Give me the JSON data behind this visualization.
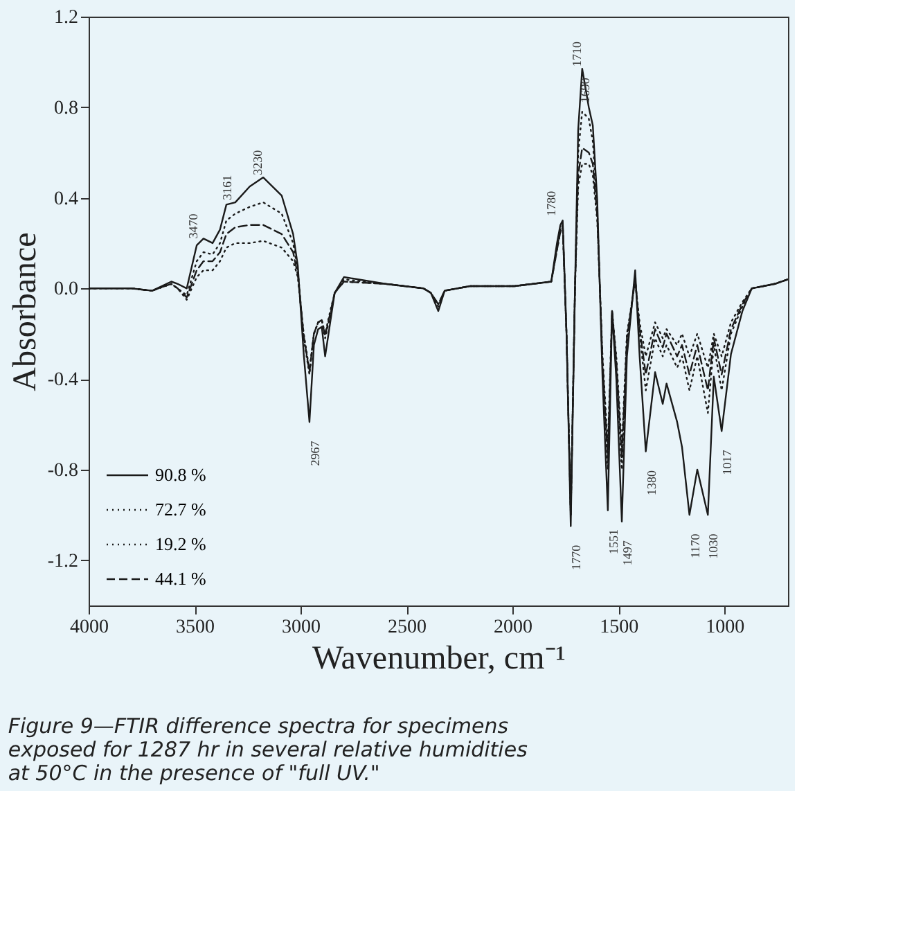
{
  "chart_data": {
    "type": "line",
    "xlabel": "Wavenumber, cm⁻¹",
    "ylabel": "Absorbance",
    "x": [
      4000,
      3800,
      3700,
      3610,
      3580,
      3537,
      3490,
      3458,
      3415,
      3380,
      3350,
      3308,
      3240,
      3176,
      3089,
      3035,
      3013,
      2985,
      2958,
      2937,
      2917,
      2900,
      2884,
      2860,
      2839,
      2795,
      2600,
      2420,
      2385,
      2350,
      2320,
      2200,
      1991,
      1817,
      1790,
      1774,
      1763,
      1745,
      1725,
      1705,
      1690,
      1671,
      1640,
      1621,
      1600,
      1575,
      1550,
      1530,
      1510,
      1484,
      1460,
      1421,
      1400,
      1371,
      1327,
      1291,
      1273,
      1223,
      1200,
      1165,
      1128,
      1078,
      1050,
      1013,
      969,
      915,
      871,
      762,
      700
    ],
    "series": [
      {
        "name": "90.8 %",
        "color": "#1a1a1a",
        "line_style": "solid",
        "values": [
          0,
          0,
          -0.01,
          0.03,
          0.02,
          0.0,
          0.19,
          0.22,
          0.2,
          0.26,
          0.37,
          0.38,
          0.45,
          0.49,
          0.41,
          0.24,
          0.1,
          -0.29,
          -0.59,
          -0.25,
          -0.18,
          -0.17,
          -0.3,
          -0.15,
          -0.02,
          0.05,
          0.02,
          0.0,
          -0.02,
          -0.1,
          -0.01,
          0.01,
          0.01,
          0.03,
          0.2,
          0.28,
          0.3,
          -0.2,
          -1.05,
          0.0,
          0.7,
          0.97,
          0.8,
          0.72,
          0.39,
          -0.4,
          -0.98,
          -0.1,
          -0.4,
          -1.03,
          -0.3,
          0.08,
          -0.3,
          -0.72,
          -0.37,
          -0.51,
          -0.42,
          -0.59,
          -0.7,
          -1.0,
          -0.8,
          -1.0,
          -0.39,
          -0.63,
          -0.29,
          -0.1,
          0.0,
          0.02,
          0.04
        ]
      },
      {
        "name": "72.7 %",
        "color": "#1a1a1a",
        "line_style": "dotted",
        "values": [
          0,
          0,
          -0.01,
          0.02,
          0.0,
          -0.03,
          0.12,
          0.16,
          0.15,
          0.2,
          0.3,
          0.33,
          0.36,
          0.38,
          0.33,
          0.2,
          0.08,
          -0.22,
          -0.38,
          -0.2,
          -0.15,
          -0.14,
          -0.22,
          -0.12,
          -0.02,
          0.04,
          0.02,
          0.0,
          -0.02,
          -0.08,
          -0.01,
          0.01,
          0.01,
          0.03,
          0.18,
          0.26,
          0.28,
          -0.2,
          -1.0,
          0.0,
          0.6,
          0.78,
          0.75,
          0.65,
          0.35,
          -0.35,
          -0.8,
          -0.1,
          -0.35,
          -0.8,
          -0.25,
          0.05,
          -0.2,
          -0.45,
          -0.22,
          -0.3,
          -0.25,
          -0.35,
          -0.3,
          -0.45,
          -0.3,
          -0.55,
          -0.25,
          -0.45,
          -0.2,
          -0.08,
          0.0,
          0.02,
          0.04
        ]
      },
      {
        "name": "19.2 %",
        "color": "#1a1a1a",
        "line_style": "dotted",
        "values": [
          0,
          0,
          -0.01,
          0.02,
          0.0,
          -0.05,
          0.05,
          0.08,
          0.08,
          0.12,
          0.18,
          0.2,
          0.2,
          0.21,
          0.18,
          0.12,
          0.05,
          -0.2,
          -0.36,
          -0.2,
          -0.15,
          -0.14,
          -0.2,
          -0.1,
          -0.02,
          0.03,
          0.02,
          0.0,
          -0.02,
          -0.07,
          -0.01,
          0.01,
          0.01,
          0.03,
          0.17,
          0.25,
          0.27,
          -0.2,
          -1.0,
          0.0,
          0.45,
          0.55,
          0.55,
          0.5,
          0.3,
          -0.3,
          -0.7,
          -0.1,
          -0.3,
          -0.7,
          -0.2,
          0.03,
          -0.15,
          -0.3,
          -0.15,
          -0.22,
          -0.18,
          -0.25,
          -0.2,
          -0.3,
          -0.2,
          -0.35,
          -0.2,
          -0.3,
          -0.15,
          -0.06,
          0.0,
          0.02,
          0.04
        ]
      },
      {
        "name": "44.1 %",
        "color": "#1a1a1a",
        "line_style": "dashed",
        "values": [
          0,
          0,
          -0.01,
          0.02,
          0.0,
          -0.04,
          0.08,
          0.12,
          0.12,
          0.16,
          0.24,
          0.27,
          0.28,
          0.28,
          0.24,
          0.16,
          0.06,
          -0.21,
          -0.37,
          -0.2,
          -0.15,
          -0.14,
          -0.21,
          -0.11,
          -0.02,
          0.03,
          0.02,
          0.0,
          -0.02,
          -0.07,
          -0.01,
          0.01,
          0.01,
          0.03,
          0.17,
          0.25,
          0.28,
          -0.2,
          -1.0,
          0.0,
          0.5,
          0.62,
          0.6,
          0.55,
          0.32,
          -0.32,
          -0.75,
          -0.1,
          -0.32,
          -0.75,
          -0.22,
          0.04,
          -0.18,
          -0.38,
          -0.18,
          -0.26,
          -0.2,
          -0.3,
          -0.25,
          -0.38,
          -0.25,
          -0.45,
          -0.22,
          -0.38,
          -0.18,
          -0.07,
          0.0,
          0.02,
          0.04
        ]
      }
    ],
    "xlim": [
      4000,
      700
    ],
    "xticks": [
      4000,
      3500,
      3000,
      2500,
      2000,
      1500,
      1000
    ],
    "ylim": [
      -1.4,
      1.2
    ],
    "yticks": [
      -1.2,
      -0.8,
      -0.4,
      {
        "value": 0,
        "label": "0.0"
      },
      0.4,
      0.8,
      1.2
    ],
    "grid": false,
    "legend": "bottom left",
    "marker": "none",
    "annotations": [
      {
        "text": "3470",
        "x": 3480,
        "y": 0.22
      },
      {
        "text": "3161",
        "x": 3320,
        "y": 0.39
      },
      {
        "text": "3230",
        "x": 3176,
        "y": 0.5
      },
      {
        "text": "2967",
        "x": 2958,
        "y": -0.6
      },
      {
        "text": "1780",
        "x": 1790,
        "y": 0.32
      },
      {
        "text": "1710",
        "x": 1671,
        "y": 0.98
      },
      {
        "text": "1690",
        "x": 1630,
        "y": 0.82
      },
      {
        "text": "1770",
        "x": 1725,
        "y": -1.06
      },
      {
        "text": "1551",
        "x": 1550,
        "y": -0.99
      },
      {
        "text": "1497",
        "x": 1484,
        "y": -1.04
      },
      {
        "text": "1380",
        "x": 1371,
        "y": -0.73
      },
      {
        "text": "1170",
        "x": 1165,
        "y": -1.01
      },
      {
        "text": "1030",
        "x": 1078,
        "y": -1.01
      },
      {
        "text": "1017",
        "x": 1013,
        "y": -0.64
      },
      "Figure 9—FTIR difference spectra for specimens exposed for 1287 hr in several relative humidities at 50°C in the presence of \"full UV.\""
    ]
  }
}
